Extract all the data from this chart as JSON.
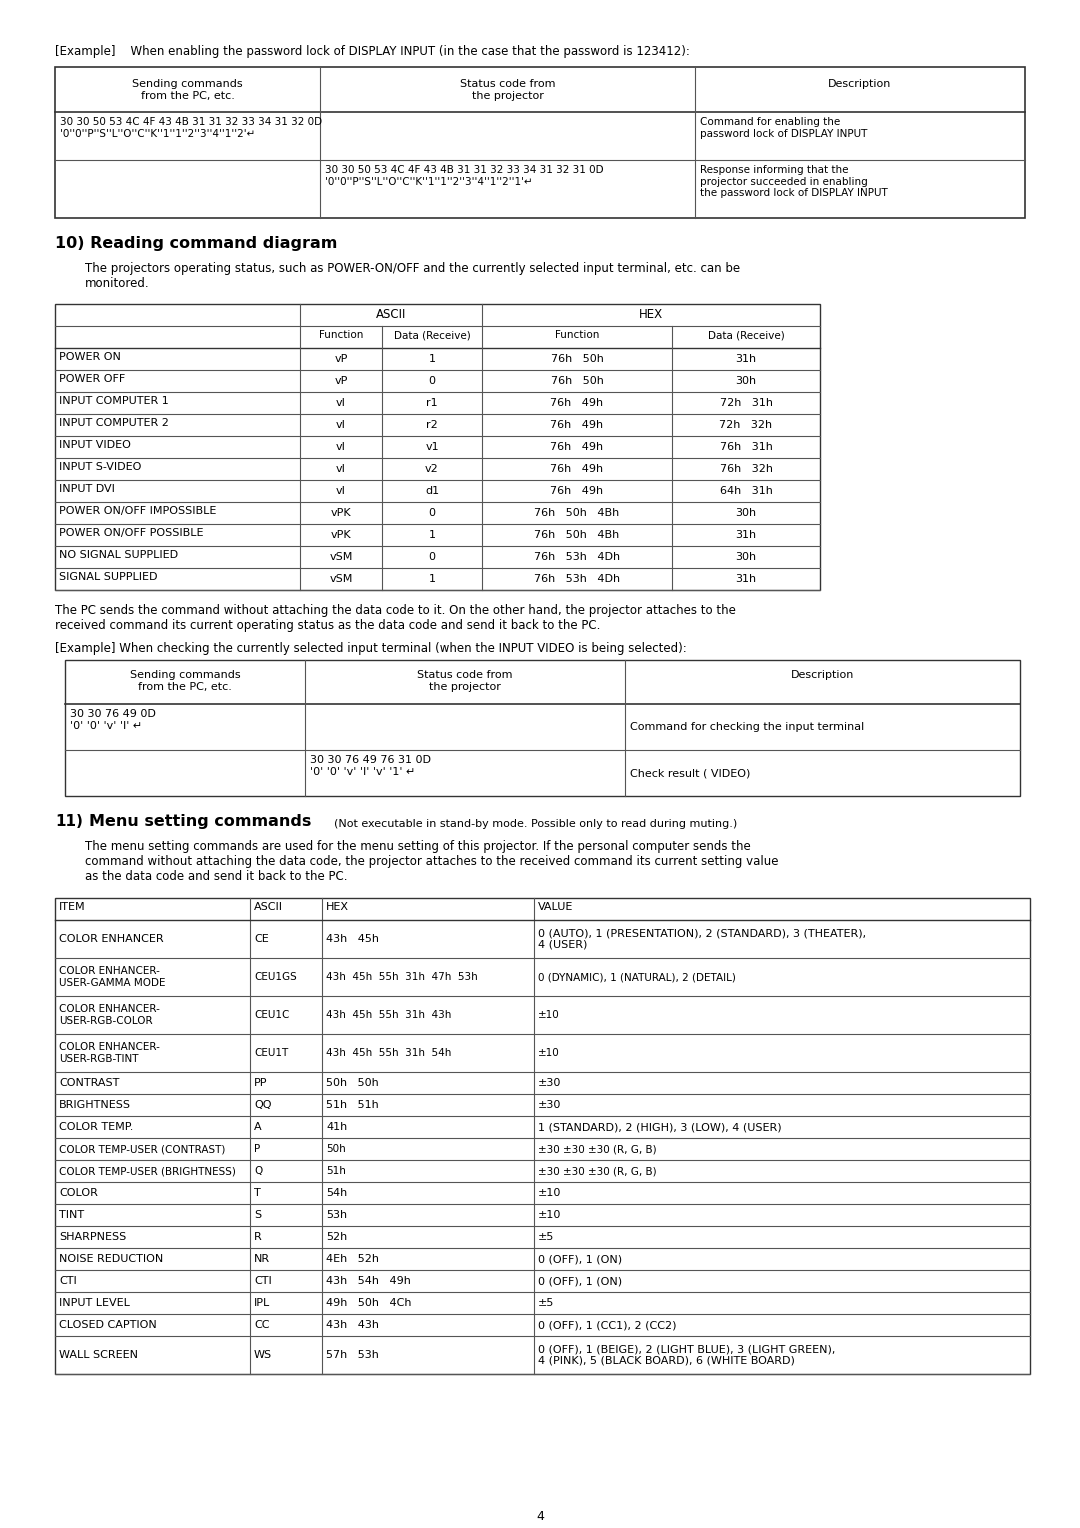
{
  "title_example1": "[Example]    When enabling the password lock of DISPLAY INPUT (in the case that the password is 123412):",
  "section10_title": "10) Reading command diagram",
  "section10_para": "The projectors operating status, such as POWER-ON/OFF and the currently selected input terminal, etc. can be\nmonitored.",
  "reading_table_rows": [
    [
      "POWER ON",
      "vP",
      "1",
      "76h   50h",
      "31h"
    ],
    [
      "POWER OFF",
      "vP",
      "0",
      "76h   50h",
      "30h"
    ],
    [
      "INPUT COMPUTER 1",
      "vI",
      "r1",
      "76h   49h",
      "72h   31h"
    ],
    [
      "INPUT COMPUTER 2",
      "vI",
      "r2",
      "76h   49h",
      "72h   32h"
    ],
    [
      "INPUT VIDEO",
      "vI",
      "v1",
      "76h   49h",
      "76h   31h"
    ],
    [
      "INPUT S-VIDEO",
      "vI",
      "v2",
      "76h   49h",
      "76h   32h"
    ],
    [
      "INPUT DVI",
      "vI",
      "d1",
      "76h   49h",
      "64h   31h"
    ],
    [
      "POWER ON/OFF IMPOSSIBLE",
      "vPK",
      "0",
      "76h   50h   4Bh",
      "30h"
    ],
    [
      "POWER ON/OFF POSSIBLE",
      "vPK",
      "1",
      "76h   50h   4Bh",
      "31h"
    ],
    [
      "NO SIGNAL SUPPLIED",
      "vSM",
      "0",
      "76h   53h   4Dh",
      "30h"
    ],
    [
      "SIGNAL SUPPLIED",
      "vSM",
      "1",
      "76h   53h   4Dh",
      "31h"
    ]
  ],
  "para2": "The PC sends the command without attaching the data code to it. On the other hand, the projector attaches to the\nreceived command its current operating status as the data code and send it back to the PC.",
  "example2_title": "[Example] When checking the currently selected input terminal (when the INPUT VIDEO is being selected):",
  "section11_para": "The menu setting commands are used for the menu setting of this projector. If the personal computer sends the\ncommand without attaching the data code, the projector attaches to the received command its current setting value\nas the data code and send it back to the PC.",
  "menu_table_headers": [
    "ITEM",
    "ASCII",
    "HEX",
    "VALUE"
  ],
  "menu_table_rows": [
    [
      "COLOR ENHANCER",
      "CE",
      "43h   45h",
      "0 (AUTO), 1 (PRESENTATION), 2 (STANDARD), 3 (THEATER),\n4 (USER)"
    ],
    [
      "COLOR ENHANCER-\nUSER-GAMMA MODE",
      "CEU1GS",
      "43h  45h  55h  31h  47h  53h",
      "0 (DYNAMIC), 1 (NATURAL), 2 (DETAIL)"
    ],
    [
      "COLOR ENHANCER-\nUSER-RGB-COLOR",
      "CEU1C",
      "43h  45h  55h  31h  43h",
      "±10"
    ],
    [
      "COLOR ENHANCER-\nUSER-RGB-TINT",
      "CEU1T",
      "43h  45h  55h  31h  54h",
      "±10"
    ],
    [
      "CONTRAST",
      "PP",
      "50h   50h",
      "±30"
    ],
    [
      "BRIGHTNESS",
      "QQ",
      "51h   51h",
      "±30"
    ],
    [
      "COLOR TEMP.",
      "A",
      "41h",
      "1 (STANDARD), 2 (HIGH), 3 (LOW), 4 (USER)"
    ],
    [
      "COLOR TEMP-USER (CONTRAST)",
      "P",
      "50h",
      "±30 ±30 ±30 (R, G, B)"
    ],
    [
      "COLOR TEMP-USER (BRIGHTNESS)",
      "Q",
      "51h",
      "±30 ±30 ±30 (R, G, B)"
    ],
    [
      "COLOR",
      "T",
      "54h",
      "±10"
    ],
    [
      "TINT",
      "S",
      "53h",
      "±10"
    ],
    [
      "SHARPNESS",
      "R",
      "52h",
      "±5"
    ],
    [
      "NOISE REDUCTION",
      "NR",
      "4Eh   52h",
      "0 (OFF), 1 (ON)"
    ],
    [
      "CTI",
      "CTI",
      "43h   54h   49h",
      "0 (OFF), 1 (ON)"
    ],
    [
      "INPUT LEVEL",
      "IPL",
      "49h   50h   4Ch",
      "±5"
    ],
    [
      "CLOSED CAPTION",
      "CC",
      "43h   43h",
      "0 (OFF), 1 (CC1), 2 (CC2)"
    ],
    [
      "WALL SCREEN",
      "WS",
      "57h   53h",
      "0 (OFF), 1 (BEIGE), 2 (LIGHT BLUE), 3 (LIGHT GREEN),\n4 (PINK), 5 (BLACK BOARD), 6 (WHITE BOARD)"
    ]
  ],
  "page_number": "4",
  "bg_color": "#ffffff",
  "text_color": "#000000",
  "border_color": "#555555"
}
